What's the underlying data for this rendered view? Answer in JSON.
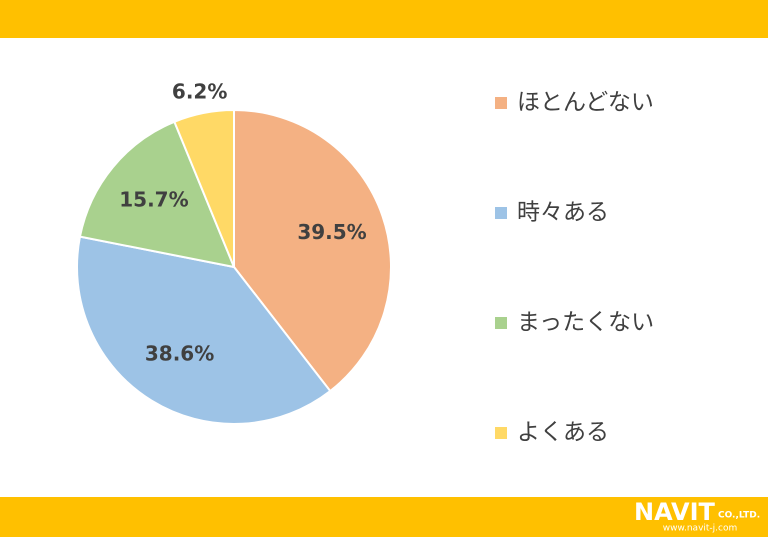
{
  "chart_data": {
    "type": "pie",
    "categories": [
      "ほとんどない",
      "時々ある",
      "まったくない",
      "よくある"
    ],
    "values": [
      39.5,
      38.6,
      15.7,
      6.2
    ],
    "value_labels": [
      "39.5%",
      "38.6%",
      "15.7%",
      "6.2%"
    ],
    "colors": [
      "#f4b183",
      "#9dc3e6",
      "#a9d18e",
      "#ffd966"
    ],
    "legend": "right"
  },
  "footer": {
    "logo": "NAVIT",
    "company": "CO.,LTD.",
    "url": "www.navit-j.com"
  }
}
